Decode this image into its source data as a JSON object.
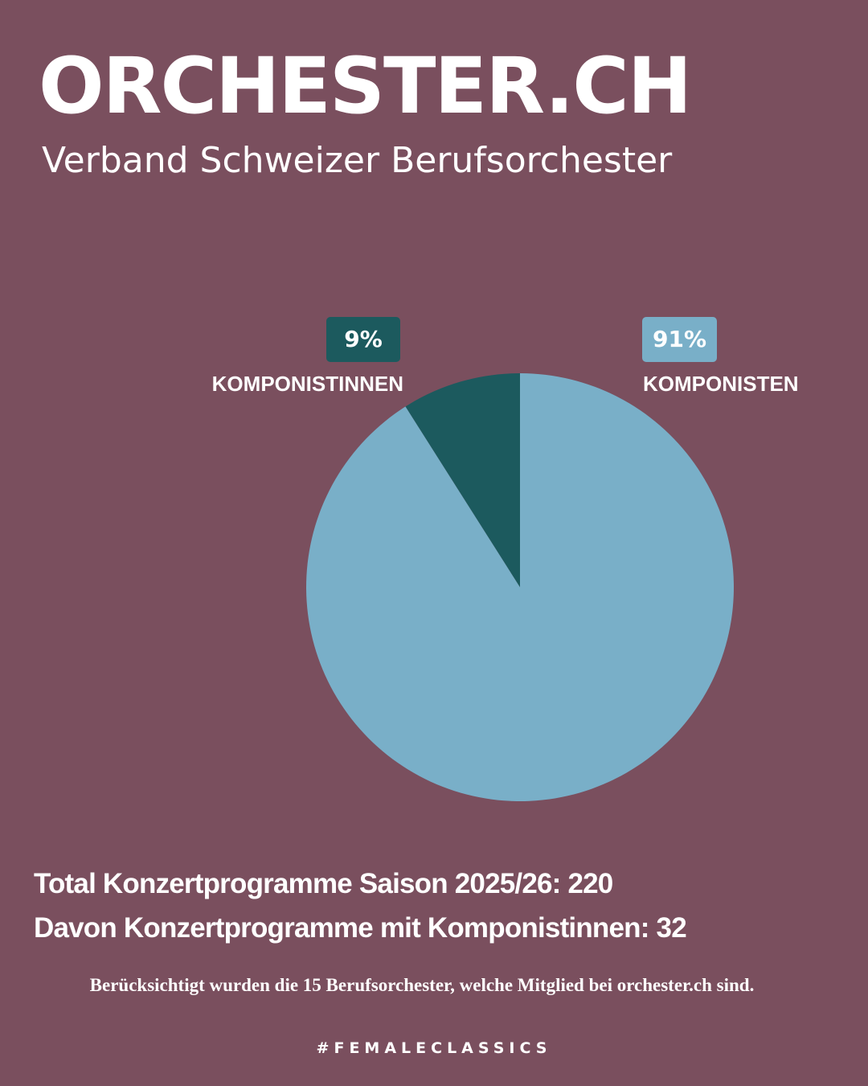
{
  "header": {
    "title": "ORCHESTER.CH",
    "subtitle": "Verband Schweizer Berufsorchester"
  },
  "chart_data": {
    "type": "pie",
    "slices": [
      {
        "label": "KOMPONISTINNEN",
        "value": 9,
        "value_label": "9%",
        "color": "#1c5a5e"
      },
      {
        "label": "KOMPONISTEN",
        "value": 91,
        "value_label": "91%",
        "color": "#79afc8"
      }
    ]
  },
  "stats": {
    "total": "Total Konzertprogramme Saison 2025/26: 220",
    "with_women": "Davon Konzertprogramme mit Komponistinnen: 32"
  },
  "footnote": "Berücksichtigt wurden die 15 Berufsorchester, welche Mitglied bei orchester.ch sind.",
  "hashtag": "#FEMALECLASSICS",
  "colors": {
    "background": "#7a4f5e",
    "text": "#ffffff"
  }
}
